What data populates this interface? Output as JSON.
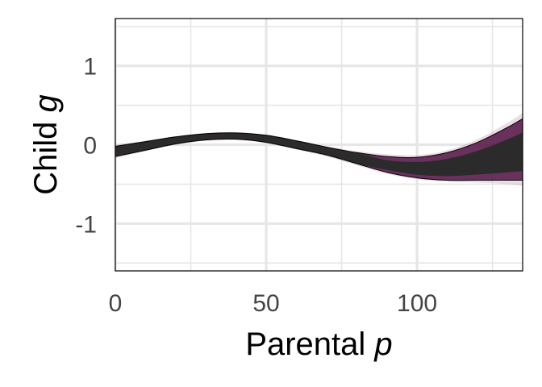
{
  "chart_data": {
    "type": "area",
    "xlabel": {
      "prefix": "Parental ",
      "variable": "p"
    },
    "ylabel": {
      "prefix": "Child ",
      "variable": "g"
    },
    "xlim": [
      0,
      135
    ],
    "ylim": [
      -1.6,
      1.6
    ],
    "x_ticks": [
      0,
      50,
      100
    ],
    "x_tick_labels": [
      "0",
      "50",
      "100"
    ],
    "y_ticks": [
      -1,
      0,
      1
    ],
    "y_tick_labels": [
      "-1",
      "0",
      "1"
    ],
    "grid": true,
    "legend": "none",
    "band": {
      "x": [
        0,
        10,
        20,
        30,
        40,
        50,
        60,
        70,
        80,
        90,
        100,
        110,
        120,
        130,
        135
      ],
      "upper": [
        -0.02,
        0.04,
        0.1,
        0.14,
        0.15,
        0.12,
        0.05,
        -0.03,
        -0.1,
        -0.15,
        -0.16,
        -0.1,
        0.03,
        0.22,
        0.33
      ],
      "lower": [
        -0.15,
        -0.07,
        0.01,
        0.06,
        0.07,
        0.03,
        -0.05,
        -0.13,
        -0.24,
        -0.35,
        -0.42,
        -0.45,
        -0.45,
        -0.45,
        -0.45
      ],
      "outer_upper": [
        0.0,
        0.05,
        0.11,
        0.15,
        0.16,
        0.13,
        0.06,
        -0.02,
        -0.08,
        -0.12,
        -0.13,
        -0.07,
        0.07,
        0.28,
        0.4
      ],
      "outer_lower": [
        -0.17,
        -0.08,
        0.0,
        0.05,
        0.06,
        0.02,
        -0.06,
        -0.15,
        -0.26,
        -0.37,
        -0.44,
        -0.47,
        -0.48,
        -0.5,
        -0.52
      ]
    },
    "colors": {
      "band_fill": "#2b2b2b",
      "band_edge": "#5c1e4e",
      "outer_fill": "#c79bb8",
      "line": "#000000",
      "panel_border": "#000000",
      "grid": "#e6e6e6"
    }
  }
}
